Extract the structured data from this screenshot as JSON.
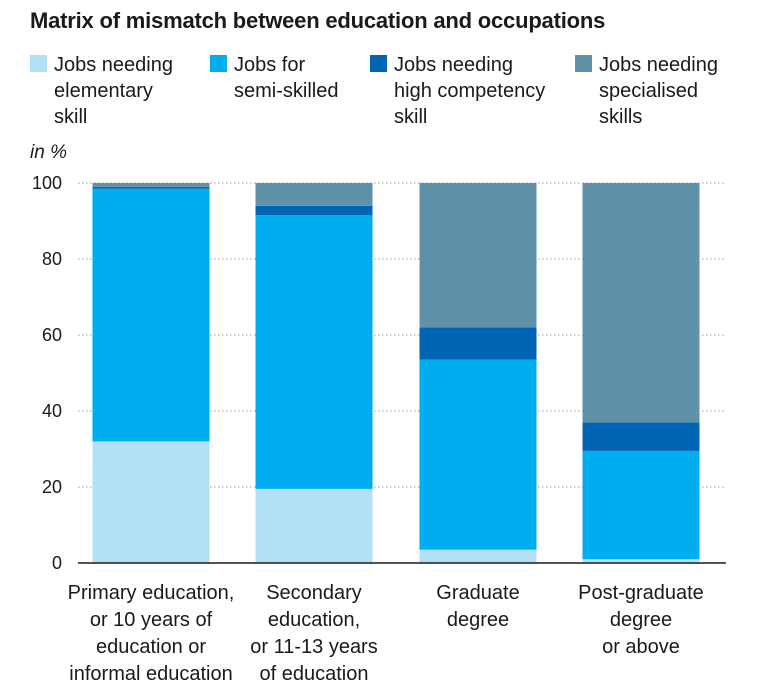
{
  "title": "Matrix of mismatch between education and occupations",
  "unit_label": "in %",
  "colors": {
    "elementary": "#b3e0f7",
    "semi_skilled": "#00adee",
    "high_competency": "#0066b3",
    "specialised": "#5f92a8",
    "grid": "#999999",
    "axis": "#1a1a1a"
  },
  "legend": [
    {
      "label": "Jobs needing\nelementary\nskill",
      "color": "#b3e0f7"
    },
    {
      "label": "Jobs for\nsemi-skilled",
      "color": "#00adee"
    },
    {
      "label": "Jobs needing\nhigh competency\nskill",
      "color": "#0066b3"
    },
    {
      "label": "Jobs needing\nspecialised\nskills",
      "color": "#5f92a8"
    }
  ],
  "chart_data": {
    "type": "bar",
    "stacked": true,
    "title": "Matrix of mismatch between education and occupations",
    "ylabel": "in %",
    "ylim": [
      0,
      100
    ],
    "yticks": [
      0,
      20,
      40,
      60,
      80,
      100
    ],
    "grid": true,
    "legend_position": "top",
    "categories": [
      "Primary education,\nor 10 years of\neducation or\ninformal education",
      "Secondary\neducation,\nor 11-13 years\nof education",
      "Graduate\ndegree",
      "Post-graduate\ndegree\nor above"
    ],
    "series": [
      {
        "name": "Jobs needing elementary skill",
        "color": "#b3e0f7",
        "values": [
          32,
          19.5,
          3.5,
          1
        ]
      },
      {
        "name": "Jobs for semi-skilled",
        "color": "#00adee",
        "values": [
          66.5,
          72,
          50,
          28.5
        ]
      },
      {
        "name": "Jobs needing high competency skill",
        "color": "#0066b3",
        "values": [
          0.5,
          2.5,
          8.5,
          7.5
        ]
      },
      {
        "name": "Jobs needing specialised skills",
        "color": "#5f92a8",
        "values": [
          1,
          6,
          38,
          63
        ]
      }
    ]
  }
}
